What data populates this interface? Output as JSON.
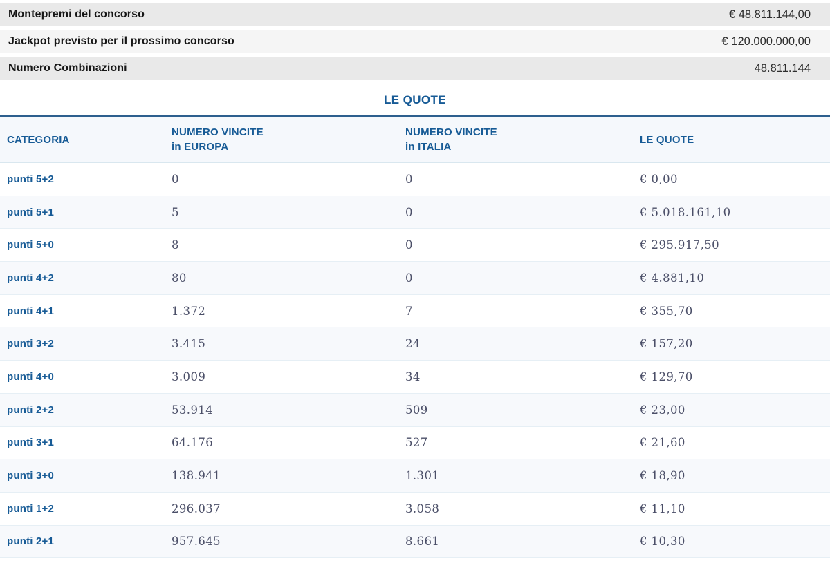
{
  "summary": {
    "rows": [
      {
        "label": "Montepremi del concorso",
        "value": "€ 48.811.144,00"
      },
      {
        "label": "Jackpot previsto per il prossimo concorso",
        "value": "€ 120.000.000,00"
      },
      {
        "label": "Numero Combinazioni",
        "value": "48.811.144"
      }
    ]
  },
  "section": {
    "title": "LE QUOTE"
  },
  "table": {
    "columns": [
      {
        "label": "CATEGORIA",
        "sub": ""
      },
      {
        "label": "NUMERO VINCITE",
        "sub": "in EUROPA"
      },
      {
        "label": "NUMERO VINCITE",
        "sub": "in ITALIA"
      },
      {
        "label": "LE QUOTE",
        "sub": ""
      }
    ],
    "rows": [
      {
        "categoria": "punti 5+2",
        "vincite_europa": "0",
        "vincite_italia": "0",
        "quota": "€ 0,00"
      },
      {
        "categoria": "punti 5+1",
        "vincite_europa": "5",
        "vincite_italia": "0",
        "quota": "€ 5.018.161,10"
      },
      {
        "categoria": "punti 5+0",
        "vincite_europa": "8",
        "vincite_italia": "0",
        "quota": "€ 295.917,50"
      },
      {
        "categoria": "punti 4+2",
        "vincite_europa": "80",
        "vincite_italia": "0",
        "quota": "€ 4.881,10"
      },
      {
        "categoria": "punti 4+1",
        "vincite_europa": "1.372",
        "vincite_italia": "7",
        "quota": "€ 355,70"
      },
      {
        "categoria": "punti 3+2",
        "vincite_europa": "3.415",
        "vincite_italia": "24",
        "quota": "€ 157,20"
      },
      {
        "categoria": "punti 4+0",
        "vincite_europa": "3.009",
        "vincite_italia": "34",
        "quota": "€ 129,70"
      },
      {
        "categoria": "punti 2+2",
        "vincite_europa": "53.914",
        "vincite_italia": "509",
        "quota": "€ 23,00"
      },
      {
        "categoria": "punti 3+1",
        "vincite_europa": "64.176",
        "vincite_italia": "527",
        "quota": "€ 21,60"
      },
      {
        "categoria": "punti 3+0",
        "vincite_europa": "138.941",
        "vincite_italia": "1.301",
        "quota": "€ 18,90"
      },
      {
        "categoria": "punti 1+2",
        "vincite_europa": "296.037",
        "vincite_italia": "3.058",
        "quota": "€ 11,10"
      },
      {
        "categoria": "punti 2+1",
        "vincite_europa": "957.645",
        "vincite_italia": "8.661",
        "quota": "€ 10,30"
      }
    ]
  },
  "colors": {
    "accent_blue": "#175b96",
    "title_rule_blue": "#2d5f8e",
    "number_ink": "#4b4f68",
    "summary_bg_dark": "#e9e9e9",
    "summary_bg_light": "#f5f5f5",
    "table_header_bg": "#f5f8fc",
    "row_alt_bg": "#f7f9fc",
    "row_separator": "#e6eff5"
  }
}
